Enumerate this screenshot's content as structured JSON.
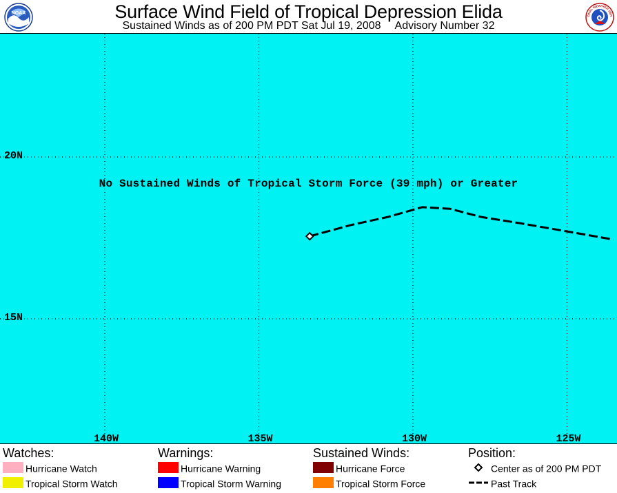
{
  "header": {
    "title": "Surface Wind Field of Tropical Depression Elida",
    "subtitle_left": "Sustained Winds as of 200 PM PDT Sat Jul 19, 2008",
    "subtitle_right": "Advisory Number 32",
    "logo_left_text": "NOAA",
    "logo_right_text": "NATIONAL WEATHER SERVICE"
  },
  "map": {
    "background_color": "#00f2f2",
    "lat_labels": [
      {
        "label": "20N",
        "lat": 20
      },
      {
        "label": "15N",
        "lat": 15
      }
    ],
    "lon_labels": [
      {
        "label": "140W",
        "lon": -140
      },
      {
        "label": "135W",
        "lon": -135
      },
      {
        "label": "130W",
        "lon": -130
      },
      {
        "label": "125W",
        "lon": -125
      }
    ],
    "message": "No Sustained Winds of Tropical Storm Force (39 mph) or Greater",
    "storm_center": {
      "lat": 17.55,
      "lon": -133.35
    },
    "past_track": [
      {
        "lat": 17.55,
        "lon": -133.35
      },
      {
        "lat": 17.9,
        "lon": -132.0
      },
      {
        "lat": 18.15,
        "lon": -130.8
      },
      {
        "lat": 18.45,
        "lon": -129.7
      },
      {
        "lat": 18.4,
        "lon": -128.8
      },
      {
        "lat": 18.15,
        "lon": -127.8
      },
      {
        "lat": 17.95,
        "lon": -126.5
      },
      {
        "lat": 17.7,
        "lon": -125.0
      },
      {
        "lat": 17.45,
        "lon": -123.5
      }
    ]
  },
  "legend": {
    "watches": {
      "heading": "Watches:",
      "items": [
        {
          "label": "Hurricane Watch",
          "color": "#ffb0c0"
        },
        {
          "label": "Tropical Storm Watch",
          "color": "#f0f000"
        }
      ]
    },
    "warnings": {
      "heading": "Warnings:",
      "items": [
        {
          "label": "Hurricane Warning",
          "color": "#ff0000"
        },
        {
          "label": "Tropical Storm Warning",
          "color": "#0000ff"
        }
      ]
    },
    "winds": {
      "heading": "Sustained Winds:",
      "items": [
        {
          "label": "Hurricane Force",
          "color": "#800000"
        },
        {
          "label": "Tropical Storm Force",
          "color": "#ff8000"
        }
      ]
    },
    "position": {
      "heading": "Position:",
      "items": [
        {
          "label": "Center as of 200 PM PDT",
          "symbol": "diamond-icon"
        },
        {
          "label": "Past Track",
          "symbol": "dashed-line-icon"
        }
      ]
    }
  }
}
